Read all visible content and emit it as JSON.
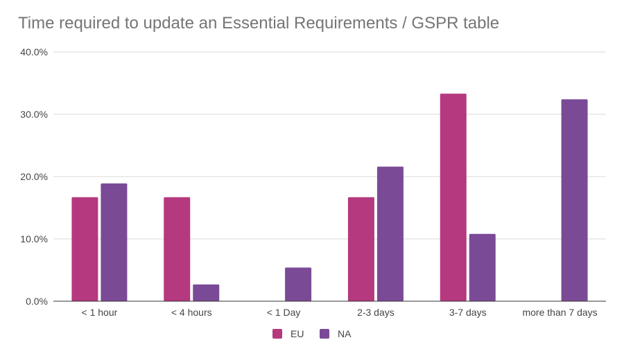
{
  "chart_data": {
    "type": "bar",
    "title": "Time required to update an Essential Requirements / GSPR table",
    "xlabel": "",
    "ylabel": "",
    "categories": [
      "< 1 hour",
      "< 4 hours",
      "< 1 Day",
      "2-3 days",
      "3-7 days",
      "more than 7 days"
    ],
    "series": [
      {
        "name": "EU",
        "color": "#b5397f",
        "values": [
          16.7,
          16.7,
          0,
          16.7,
          33.3,
          0
        ]
      },
      {
        "name": "NA",
        "color": "#7b4a96",
        "values": [
          18.9,
          2.7,
          5.4,
          21.6,
          10.8,
          32.4
        ]
      }
    ],
    "ylim": [
      0,
      40
    ],
    "yticks": [
      "0.0%",
      "10.0%",
      "20.0%",
      "30.0%",
      "40.0%"
    ],
    "grid": true,
    "legend": "bottom"
  }
}
